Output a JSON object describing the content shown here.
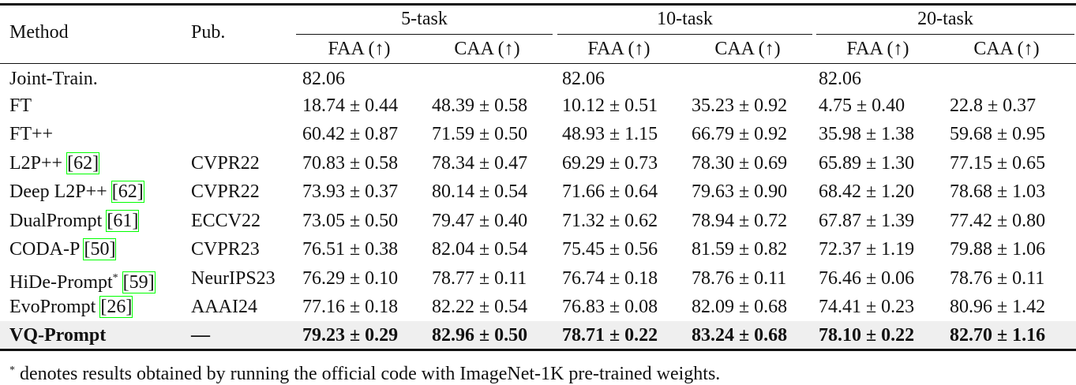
{
  "header": {
    "method": "Method",
    "pub": "Pub.",
    "groups": [
      "5-task",
      "10-task",
      "20-task"
    ],
    "subheaders": [
      "FAA (↑)",
      "CAA (↑)",
      "FAA (↑)",
      "CAA (↑)",
      "FAA (↑)",
      "CAA (↑)"
    ]
  },
  "table": {
    "rows": [
      {
        "method": "Joint-Train.",
        "pub": null,
        "cells": [
          "82.06",
          null,
          "82.06",
          null,
          "82.06",
          null
        ]
      },
      {
        "method": "FT",
        "pub": null,
        "cells": [
          "18.74 ± 0.44",
          "48.39 ± 0.58",
          "10.12 ± 0.51",
          "35.23 ± 0.92",
          "4.75 ± 0.40",
          "22.8 ± 0.37"
        ]
      },
      {
        "method": "FT++",
        "pub": null,
        "cells": [
          "60.42 ± 0.87",
          "71.59 ± 0.50",
          "48.93 ± 1.15",
          "66.79 ± 0.92",
          "35.98 ± 1.38",
          "59.68 ± 0.95"
        ]
      },
      {
        "method": "L2P++",
        "cite": "[62]",
        "pub": "CVPR22",
        "cells": [
          "70.83 ± 0.58",
          "78.34 ± 0.47",
          "69.29 ± 0.73",
          "78.30 ± 0.69",
          "65.89 ± 1.30",
          "77.15 ± 0.65"
        ]
      },
      {
        "method": "Deep L2P++",
        "cite": "[62]",
        "pub": "CVPR22",
        "cells": [
          "73.93 ± 0.37",
          "80.14 ± 0.54",
          "71.66 ± 0.64",
          "79.63 ± 0.90",
          "68.42 ± 1.20",
          "78.68 ± 1.03"
        ]
      },
      {
        "method": "DualPrompt",
        "cite": "[61]",
        "pub": "ECCV22",
        "cells": [
          "73.05 ± 0.50",
          "79.47 ± 0.40",
          "71.32 ± 0.62",
          "78.94 ± 0.72",
          "67.87 ± 1.39",
          "77.42 ± 0.80"
        ]
      },
      {
        "method": "CODA-P",
        "cite": "[50]",
        "pub": "CVPR23",
        "cells": [
          "76.51 ± 0.38",
          "82.04 ± 0.54",
          "75.45 ± 0.56",
          "81.59 ± 0.82",
          "72.37 ± 1.19",
          "79.88 ± 1.06"
        ]
      },
      {
        "method": "HiDe-Prompt",
        "sup": "*",
        "cite": "[59]",
        "pub": "NeurIPS23",
        "cells": [
          "76.29 ± 0.10",
          "78.77 ± 0.11",
          "76.74 ± 0.18",
          "78.76 ± 0.11",
          "76.46 ± 0.06",
          "78.76 ± 0.11"
        ]
      },
      {
        "method": "EvoPrompt",
        "cite": "[26]",
        "pub": "AAAI24",
        "cells": [
          "77.16 ± 0.18",
          "82.22 ± 0.54",
          "76.83 ± 0.08",
          "82.09 ± 0.68",
          "74.41 ± 0.23",
          "80.96 ± 1.42"
        ]
      },
      {
        "method": "VQ-Prompt",
        "pub": "—",
        "bold": true,
        "cells": [
          "79.23 ± 0.29",
          "82.96 ± 0.50",
          "78.71 ± 0.22",
          "83.24 ± 0.68",
          "78.10 ± 0.22",
          "82.70 ± 1.16"
        ]
      }
    ]
  },
  "footnote": {
    "mark": "*",
    "text": "denotes results obtained by running the official code with ImageNet-1K pre-trained weights."
  }
}
